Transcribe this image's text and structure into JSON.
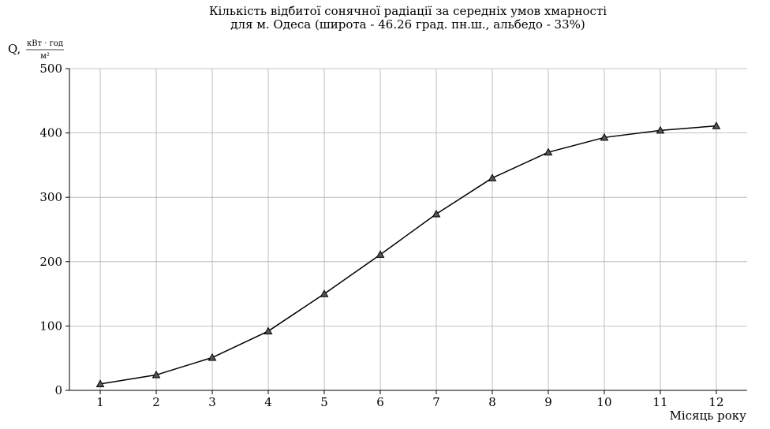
{
  "chart_data": {
    "type": "line",
    "title": "Кількість відбитої сонячної радіації за середніх умов хмарності",
    "subtitle": "для м. Одеса (широта - 46.26 град. пн.ш., альбедо - 33%)",
    "xlabel": "Місяць року",
    "ylabel": "Q,",
    "ylabel_unit_numerator": "кВт · год",
    "ylabel_unit_denominator": "м²",
    "x": [
      1,
      2,
      3,
      4,
      5,
      6,
      7,
      8,
      9,
      10,
      11,
      12
    ],
    "series": [
      {
        "values": [
          10,
          24,
          51,
          92,
          150,
          211,
          274,
          330,
          370,
          393,
          404,
          411
        ],
        "color": "#000000",
        "marker": "triangle",
        "marker_color": "#555555"
      }
    ],
    "xlim": [
      0.45,
      12.55
    ],
    "ylim": [
      0,
      500
    ],
    "yticks": [
      0,
      100,
      200,
      300,
      400,
      500
    ],
    "xticks": [
      1,
      2,
      3,
      4,
      5,
      6,
      7,
      8,
      9,
      10,
      11,
      12
    ],
    "grid": true
  }
}
